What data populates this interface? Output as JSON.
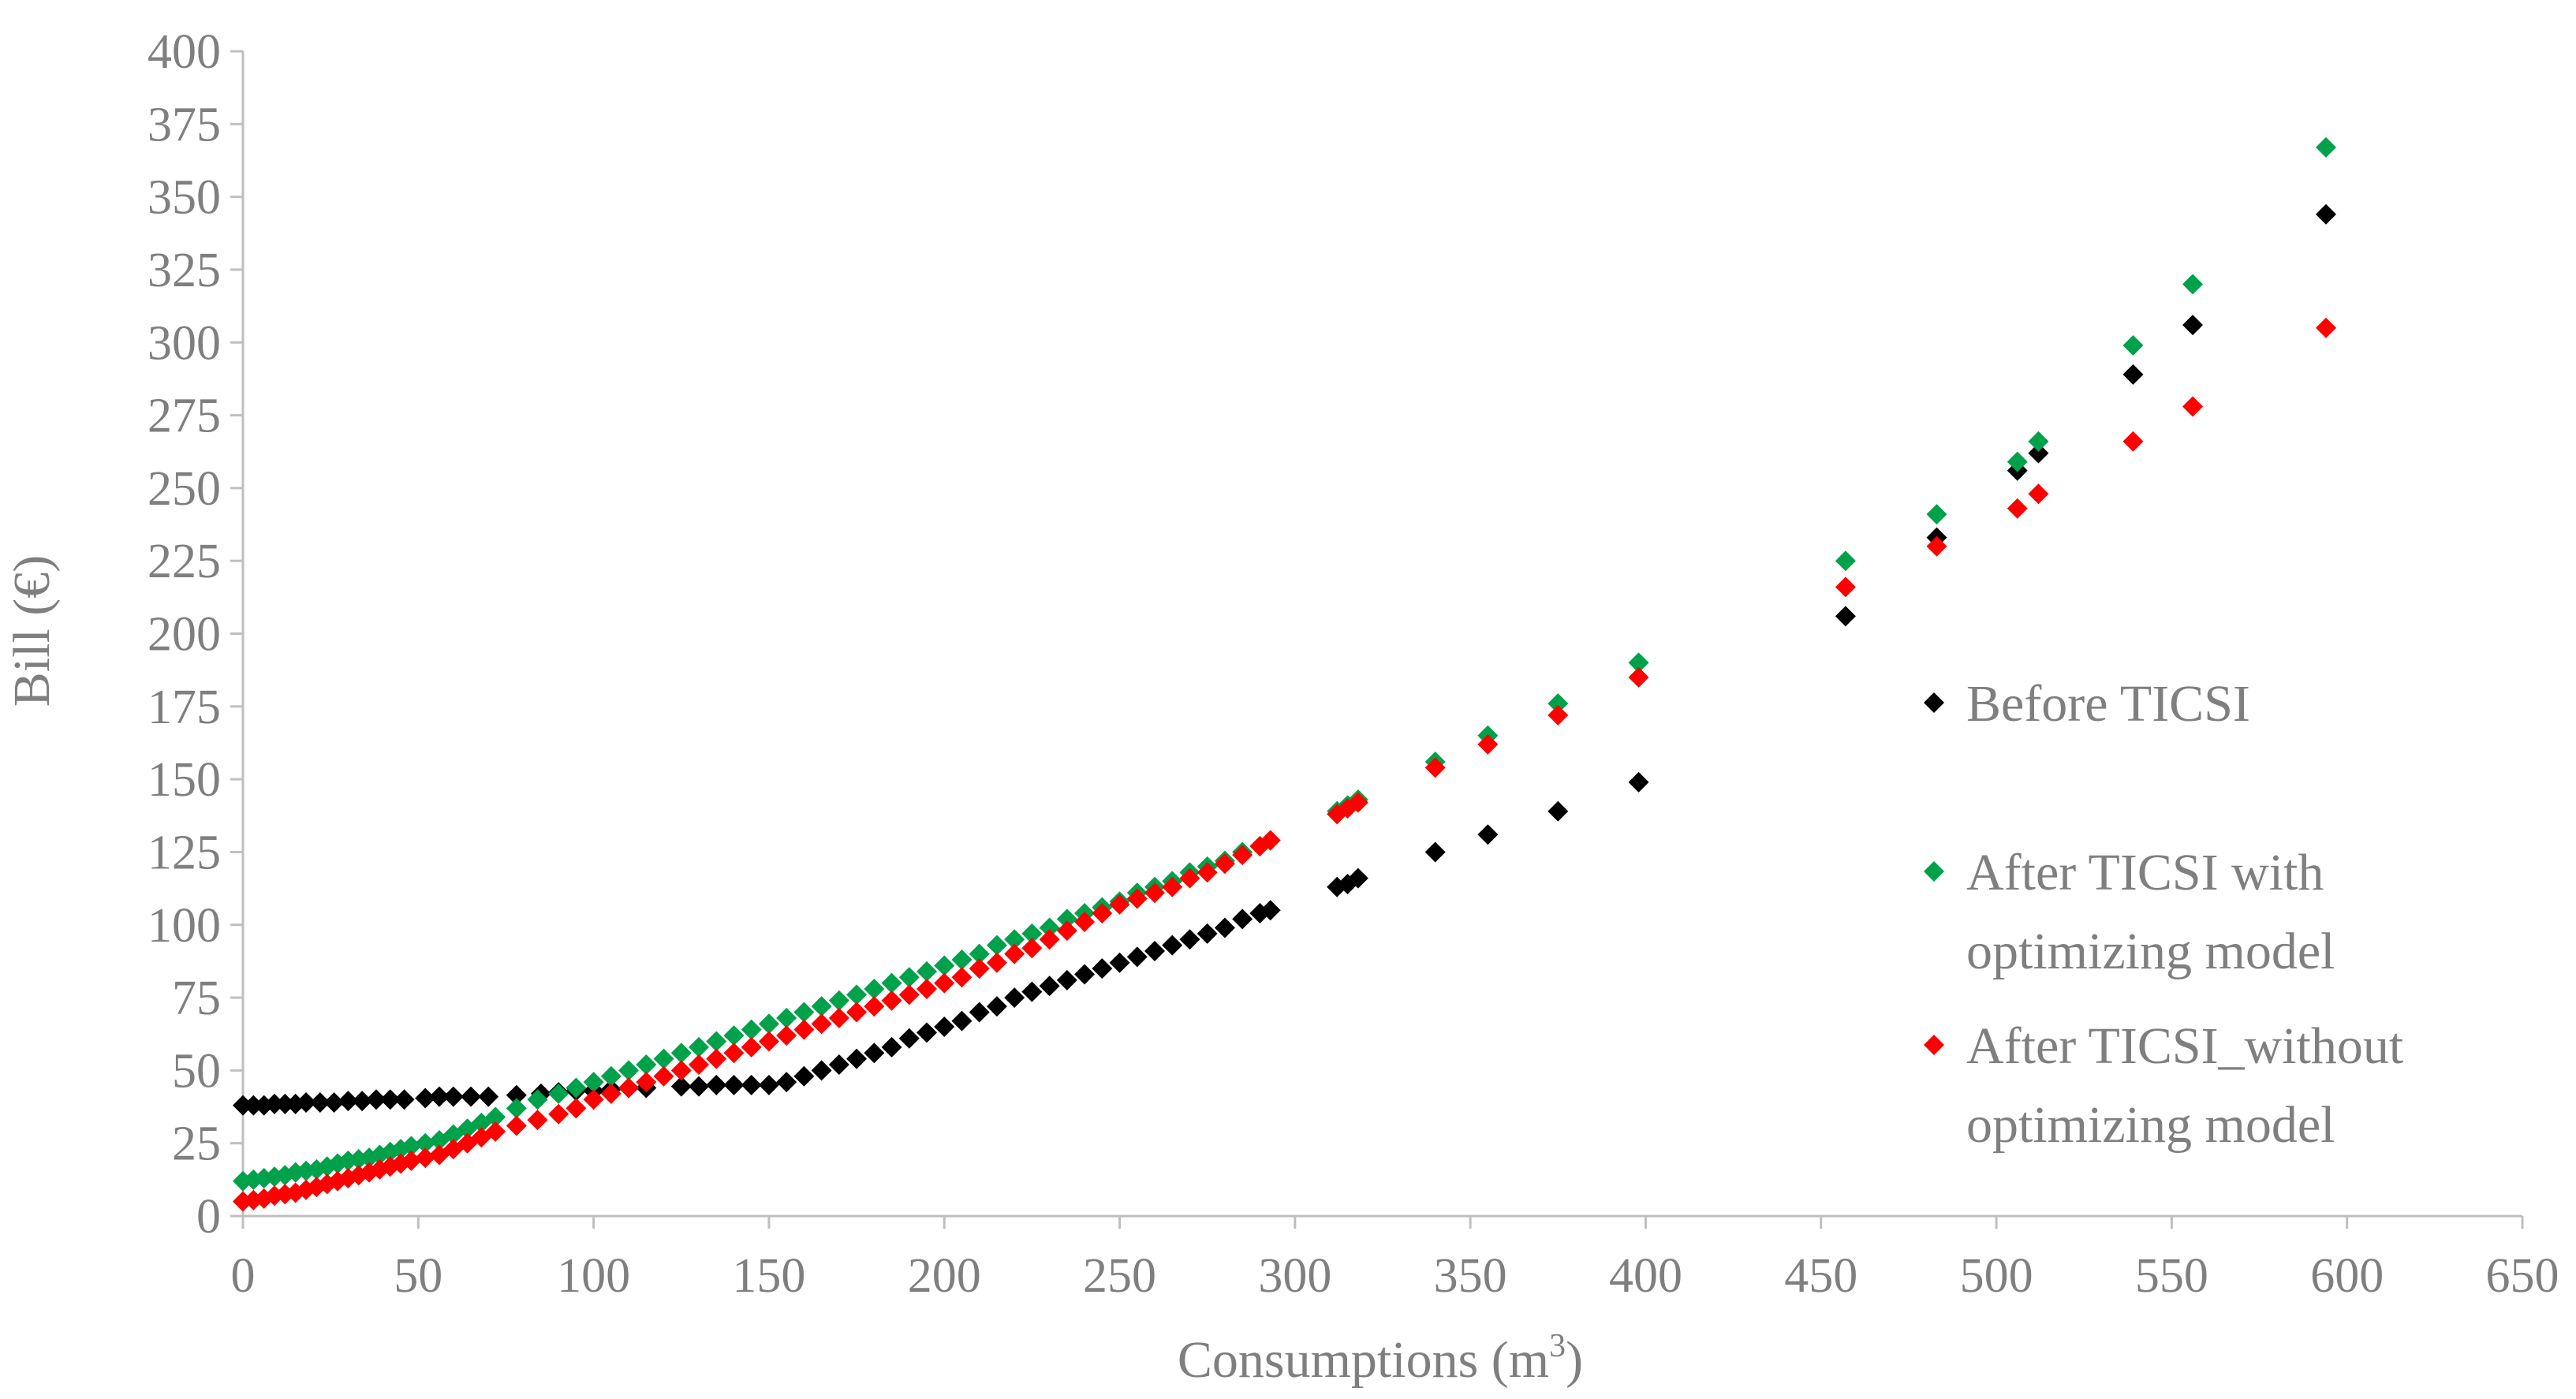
{
  "chart_data": {
    "type": "scatter",
    "title": "",
    "xlabel": "Consumptions (m",
    "xlabel_sup": "3",
    "xlabel_end": ")",
    "ylabel": "Bill (€)",
    "xlim": [
      0,
      650
    ],
    "ylim": [
      0,
      400
    ],
    "xticks": [
      "0",
      "50",
      "100",
      "150",
      "200",
      "250",
      "300",
      "350",
      "400",
      "450",
      "500",
      "550",
      "600",
      "650"
    ],
    "yticks": [
      "0",
      "25",
      "50",
      "75",
      "100",
      "125",
      "150",
      "175",
      "200",
      "225",
      "250",
      "275",
      "300",
      "325",
      "350",
      "375",
      "400"
    ],
    "grid": false,
    "legend_placement": "right",
    "series": [
      {
        "name": "Before TICSI",
        "color": "#000000",
        "points": [
          [
            0,
            38
          ],
          [
            3,
            38
          ],
          [
            6,
            38
          ],
          [
            9,
            38.5
          ],
          [
            12,
            38.5
          ],
          [
            15,
            38.5
          ],
          [
            18,
            39
          ],
          [
            22,
            39
          ],
          [
            26,
            39
          ],
          [
            30,
            39.5
          ],
          [
            34,
            39.5
          ],
          [
            38,
            40
          ],
          [
            42,
            40
          ],
          [
            46,
            40
          ],
          [
            52,
            40.5
          ],
          [
            56,
            41
          ],
          [
            60,
            41
          ],
          [
            65,
            41
          ],
          [
            70,
            41
          ],
          [
            78,
            41.5
          ],
          [
            85,
            42
          ],
          [
            90,
            42.5
          ],
          [
            95,
            43
          ],
          [
            100,
            43
          ],
          [
            105,
            43.5
          ],
          [
            110,
            44
          ],
          [
            115,
            44
          ],
          [
            125,
            44.5
          ],
          [
            130,
            44.5
          ],
          [
            135,
            45
          ],
          [
            140,
            45
          ],
          [
            145,
            45
          ],
          [
            150,
            45
          ],
          [
            155,
            46
          ],
          [
            160,
            48
          ],
          [
            165,
            50
          ],
          [
            170,
            52
          ],
          [
            175,
            54
          ],
          [
            180,
            56
          ],
          [
            185,
            58
          ],
          [
            190,
            61
          ],
          [
            195,
            63
          ],
          [
            200,
            65
          ],
          [
            205,
            67
          ],
          [
            210,
            70
          ],
          [
            215,
            72
          ],
          [
            220,
            75
          ],
          [
            225,
            77
          ],
          [
            230,
            79
          ],
          [
            235,
            81
          ],
          [
            240,
            83
          ],
          [
            245,
            85
          ],
          [
            250,
            87
          ],
          [
            255,
            89
          ],
          [
            260,
            91
          ],
          [
            265,
            93
          ],
          [
            270,
            95
          ],
          [
            275,
            97
          ],
          [
            280,
            99
          ],
          [
            285,
            102
          ],
          [
            290,
            104
          ],
          [
            293,
            105
          ],
          [
            312,
            113
          ],
          [
            315,
            114
          ],
          [
            318,
            116
          ],
          [
            340,
            125
          ],
          [
            355,
            131
          ],
          [
            375,
            139
          ],
          [
            398,
            149
          ],
          [
            457,
            206
          ],
          [
            483,
            233
          ],
          [
            506,
            256
          ],
          [
            512,
            262
          ],
          [
            539,
            289
          ],
          [
            556,
            306
          ],
          [
            594,
            344
          ]
        ]
      },
      {
        "name": "After TICSI with optimizing model",
        "color": "#00a14b",
        "points": [
          [
            0,
            12
          ],
          [
            3,
            12.5
          ],
          [
            6,
            13
          ],
          [
            9,
            13.5
          ],
          [
            12,
            14
          ],
          [
            15,
            15
          ],
          [
            18,
            15.5
          ],
          [
            21,
            16
          ],
          [
            24,
            17
          ],
          [
            27,
            18
          ],
          [
            30,
            19
          ],
          [
            33,
            19.5
          ],
          [
            36,
            20
          ],
          [
            39,
            21
          ],
          [
            42,
            22
          ],
          [
            45,
            23
          ],
          [
            48,
            24
          ],
          [
            52,
            25
          ],
          [
            56,
            26
          ],
          [
            60,
            28
          ],
          [
            64,
            30
          ],
          [
            68,
            32
          ],
          [
            72,
            34
          ],
          [
            78,
            37
          ],
          [
            84,
            40
          ],
          [
            90,
            42
          ],
          [
            95,
            44
          ],
          [
            100,
            46
          ],
          [
            105,
            48
          ],
          [
            110,
            50
          ],
          [
            115,
            52
          ],
          [
            120,
            54
          ],
          [
            125,
            56
          ],
          [
            130,
            58
          ],
          [
            135,
            60
          ],
          [
            140,
            62
          ],
          [
            145,
            64
          ],
          [
            150,
            66
          ],
          [
            155,
            68
          ],
          [
            160,
            70
          ],
          [
            165,
            72
          ],
          [
            170,
            74
          ],
          [
            175,
            76
          ],
          [
            180,
            78
          ],
          [
            185,
            80
          ],
          [
            190,
            82
          ],
          [
            195,
            84
          ],
          [
            200,
            86
          ],
          [
            205,
            88
          ],
          [
            210,
            90
          ],
          [
            215,
            93
          ],
          [
            220,
            95
          ],
          [
            225,
            97
          ],
          [
            230,
            99
          ],
          [
            235,
            102
          ],
          [
            240,
            104
          ],
          [
            245,
            106
          ],
          [
            250,
            108
          ],
          [
            255,
            111
          ],
          [
            260,
            113
          ],
          [
            265,
            115
          ],
          [
            270,
            118
          ],
          [
            275,
            120
          ],
          [
            280,
            122
          ],
          [
            285,
            125
          ],
          [
            290,
            127
          ],
          [
            293,
            129
          ],
          [
            312,
            139
          ],
          [
            315,
            141
          ],
          [
            318,
            143
          ],
          [
            340,
            156
          ],
          [
            355,
            165
          ],
          [
            375,
            176
          ],
          [
            398,
            190
          ],
          [
            457,
            225
          ],
          [
            483,
            241
          ],
          [
            506,
            259
          ],
          [
            512,
            266
          ],
          [
            539,
            299
          ],
          [
            556,
            320
          ],
          [
            594,
            367
          ]
        ]
      },
      {
        "name": "After TICSI_without optimizing model",
        "color": "#ff0000",
        "points": [
          [
            0,
            5
          ],
          [
            3,
            5.5
          ],
          [
            6,
            6
          ],
          [
            9,
            7
          ],
          [
            12,
            7.5
          ],
          [
            15,
            8
          ],
          [
            18,
            9
          ],
          [
            21,
            10
          ],
          [
            24,
            11
          ],
          [
            27,
            12
          ],
          [
            30,
            13
          ],
          [
            33,
            14
          ],
          [
            36,
            15
          ],
          [
            39,
            16
          ],
          [
            42,
            17
          ],
          [
            45,
            18
          ],
          [
            48,
            19
          ],
          [
            52,
            20
          ],
          [
            56,
            21
          ],
          [
            60,
            23
          ],
          [
            64,
            25
          ],
          [
            68,
            27
          ],
          [
            72,
            29
          ],
          [
            78,
            31
          ],
          [
            84,
            33
          ],
          [
            90,
            35
          ],
          [
            95,
            37
          ],
          [
            100,
            40
          ],
          [
            105,
            42
          ],
          [
            110,
            44
          ],
          [
            115,
            46
          ],
          [
            120,
            48
          ],
          [
            125,
            50
          ],
          [
            130,
            52
          ],
          [
            135,
            54
          ],
          [
            140,
            56
          ],
          [
            145,
            58
          ],
          [
            150,
            60
          ],
          [
            155,
            62
          ],
          [
            160,
            64
          ],
          [
            165,
            66
          ],
          [
            170,
            68
          ],
          [
            175,
            70
          ],
          [
            180,
            72
          ],
          [
            185,
            74
          ],
          [
            190,
            76
          ],
          [
            195,
            78
          ],
          [
            200,
            80
          ],
          [
            205,
            82
          ],
          [
            210,
            85
          ],
          [
            215,
            87
          ],
          [
            220,
            90
          ],
          [
            225,
            92
          ],
          [
            230,
            95
          ],
          [
            235,
            98
          ],
          [
            240,
            101
          ],
          [
            245,
            104
          ],
          [
            250,
            107
          ],
          [
            255,
            109
          ],
          [
            260,
            111
          ],
          [
            265,
            113
          ],
          [
            270,
            116
          ],
          [
            275,
            118
          ],
          [
            280,
            121
          ],
          [
            285,
            124
          ],
          [
            290,
            127
          ],
          [
            293,
            129
          ],
          [
            312,
            138
          ],
          [
            315,
            140
          ],
          [
            318,
            142
          ],
          [
            340,
            154
          ],
          [
            355,
            162
          ],
          [
            375,
            172
          ],
          [
            398,
            185
          ],
          [
            457,
            216
          ],
          [
            483,
            230
          ],
          [
            506,
            243
          ],
          [
            512,
            248
          ],
          [
            539,
            266
          ],
          [
            556,
            278
          ],
          [
            594,
            305
          ]
        ]
      }
    ]
  }
}
